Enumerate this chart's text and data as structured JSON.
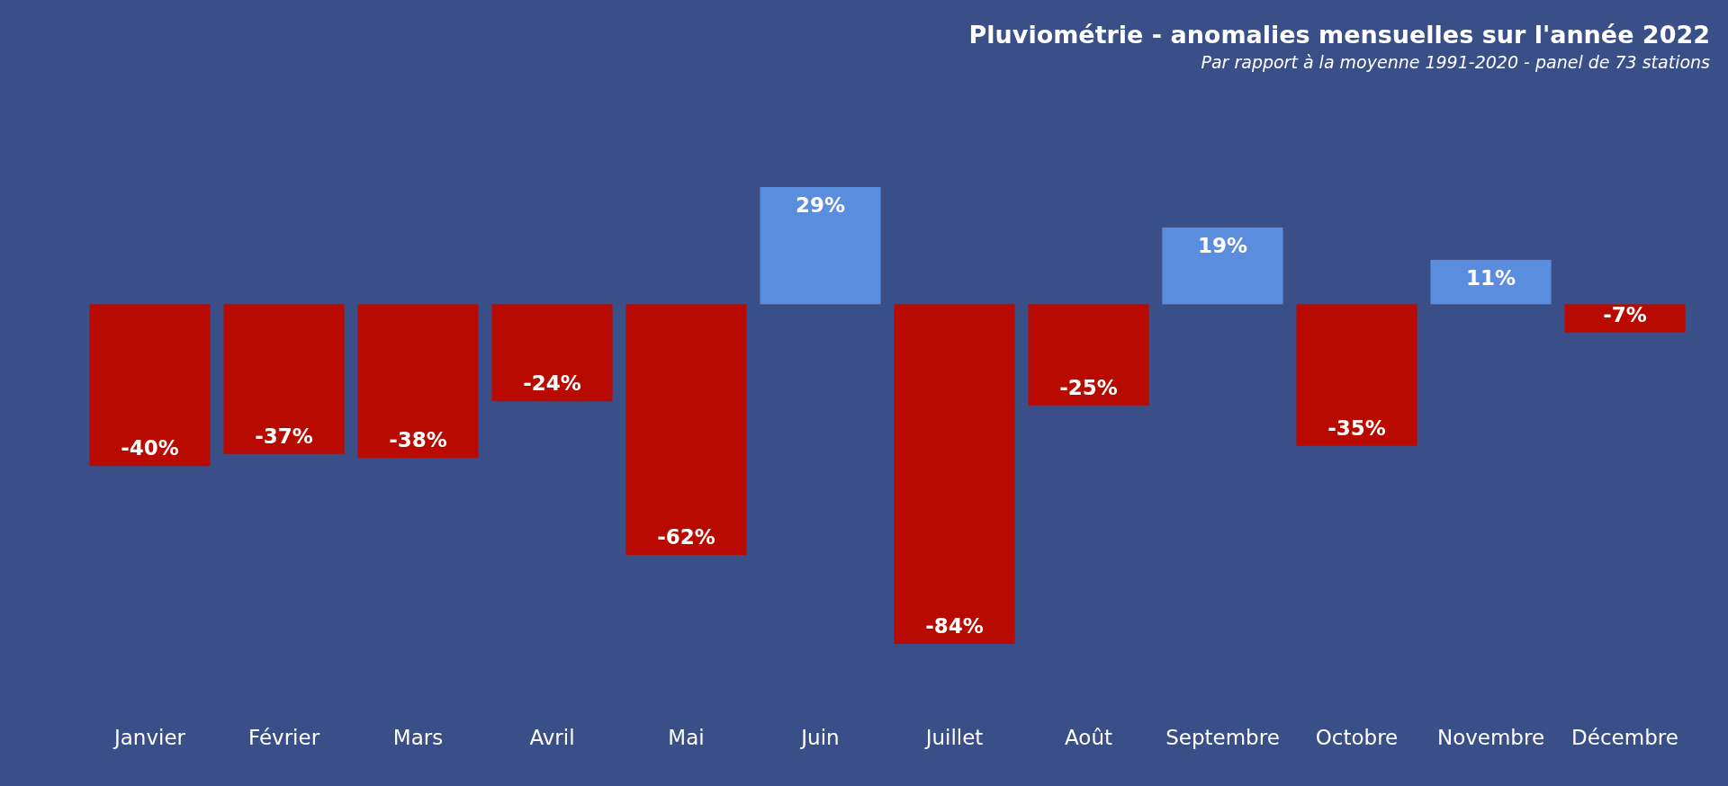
{
  "chart_data": {
    "type": "bar",
    "title": "Pluviométrie - anomalies mensuelles sur l'année 2022",
    "subtitle": "Par rapport à la moyenne 1991-2020 - panel de 73 stations",
    "categories": [
      "Janvier",
      "Février",
      "Mars",
      "Avril",
      "Mai",
      "Juin",
      "Juillet",
      "Août",
      "Septembre",
      "Octobre",
      "Novembre",
      "Décembre"
    ],
    "values": [
      -40,
      -37,
      -38,
      -24,
      -62,
      29,
      -84,
      -25,
      19,
      -35,
      11,
      -7
    ],
    "value_labels": [
      "-40%",
      "-37%",
      "-38%",
      "-24%",
      "-62%",
      "29%",
      "-84%",
      "-25%",
      "19%",
      "-35%",
      "11%",
      "-7%"
    ],
    "colors": [
      "#b80a00",
      "#b80a00",
      "#b80a00",
      "#b80a00",
      "#b80a00",
      "#5b8ddf",
      "#b80a00",
      "#b80a00",
      "#5b8ddf",
      "#b80a00",
      "#5b8ddf",
      "#b80a00"
    ]
  }
}
